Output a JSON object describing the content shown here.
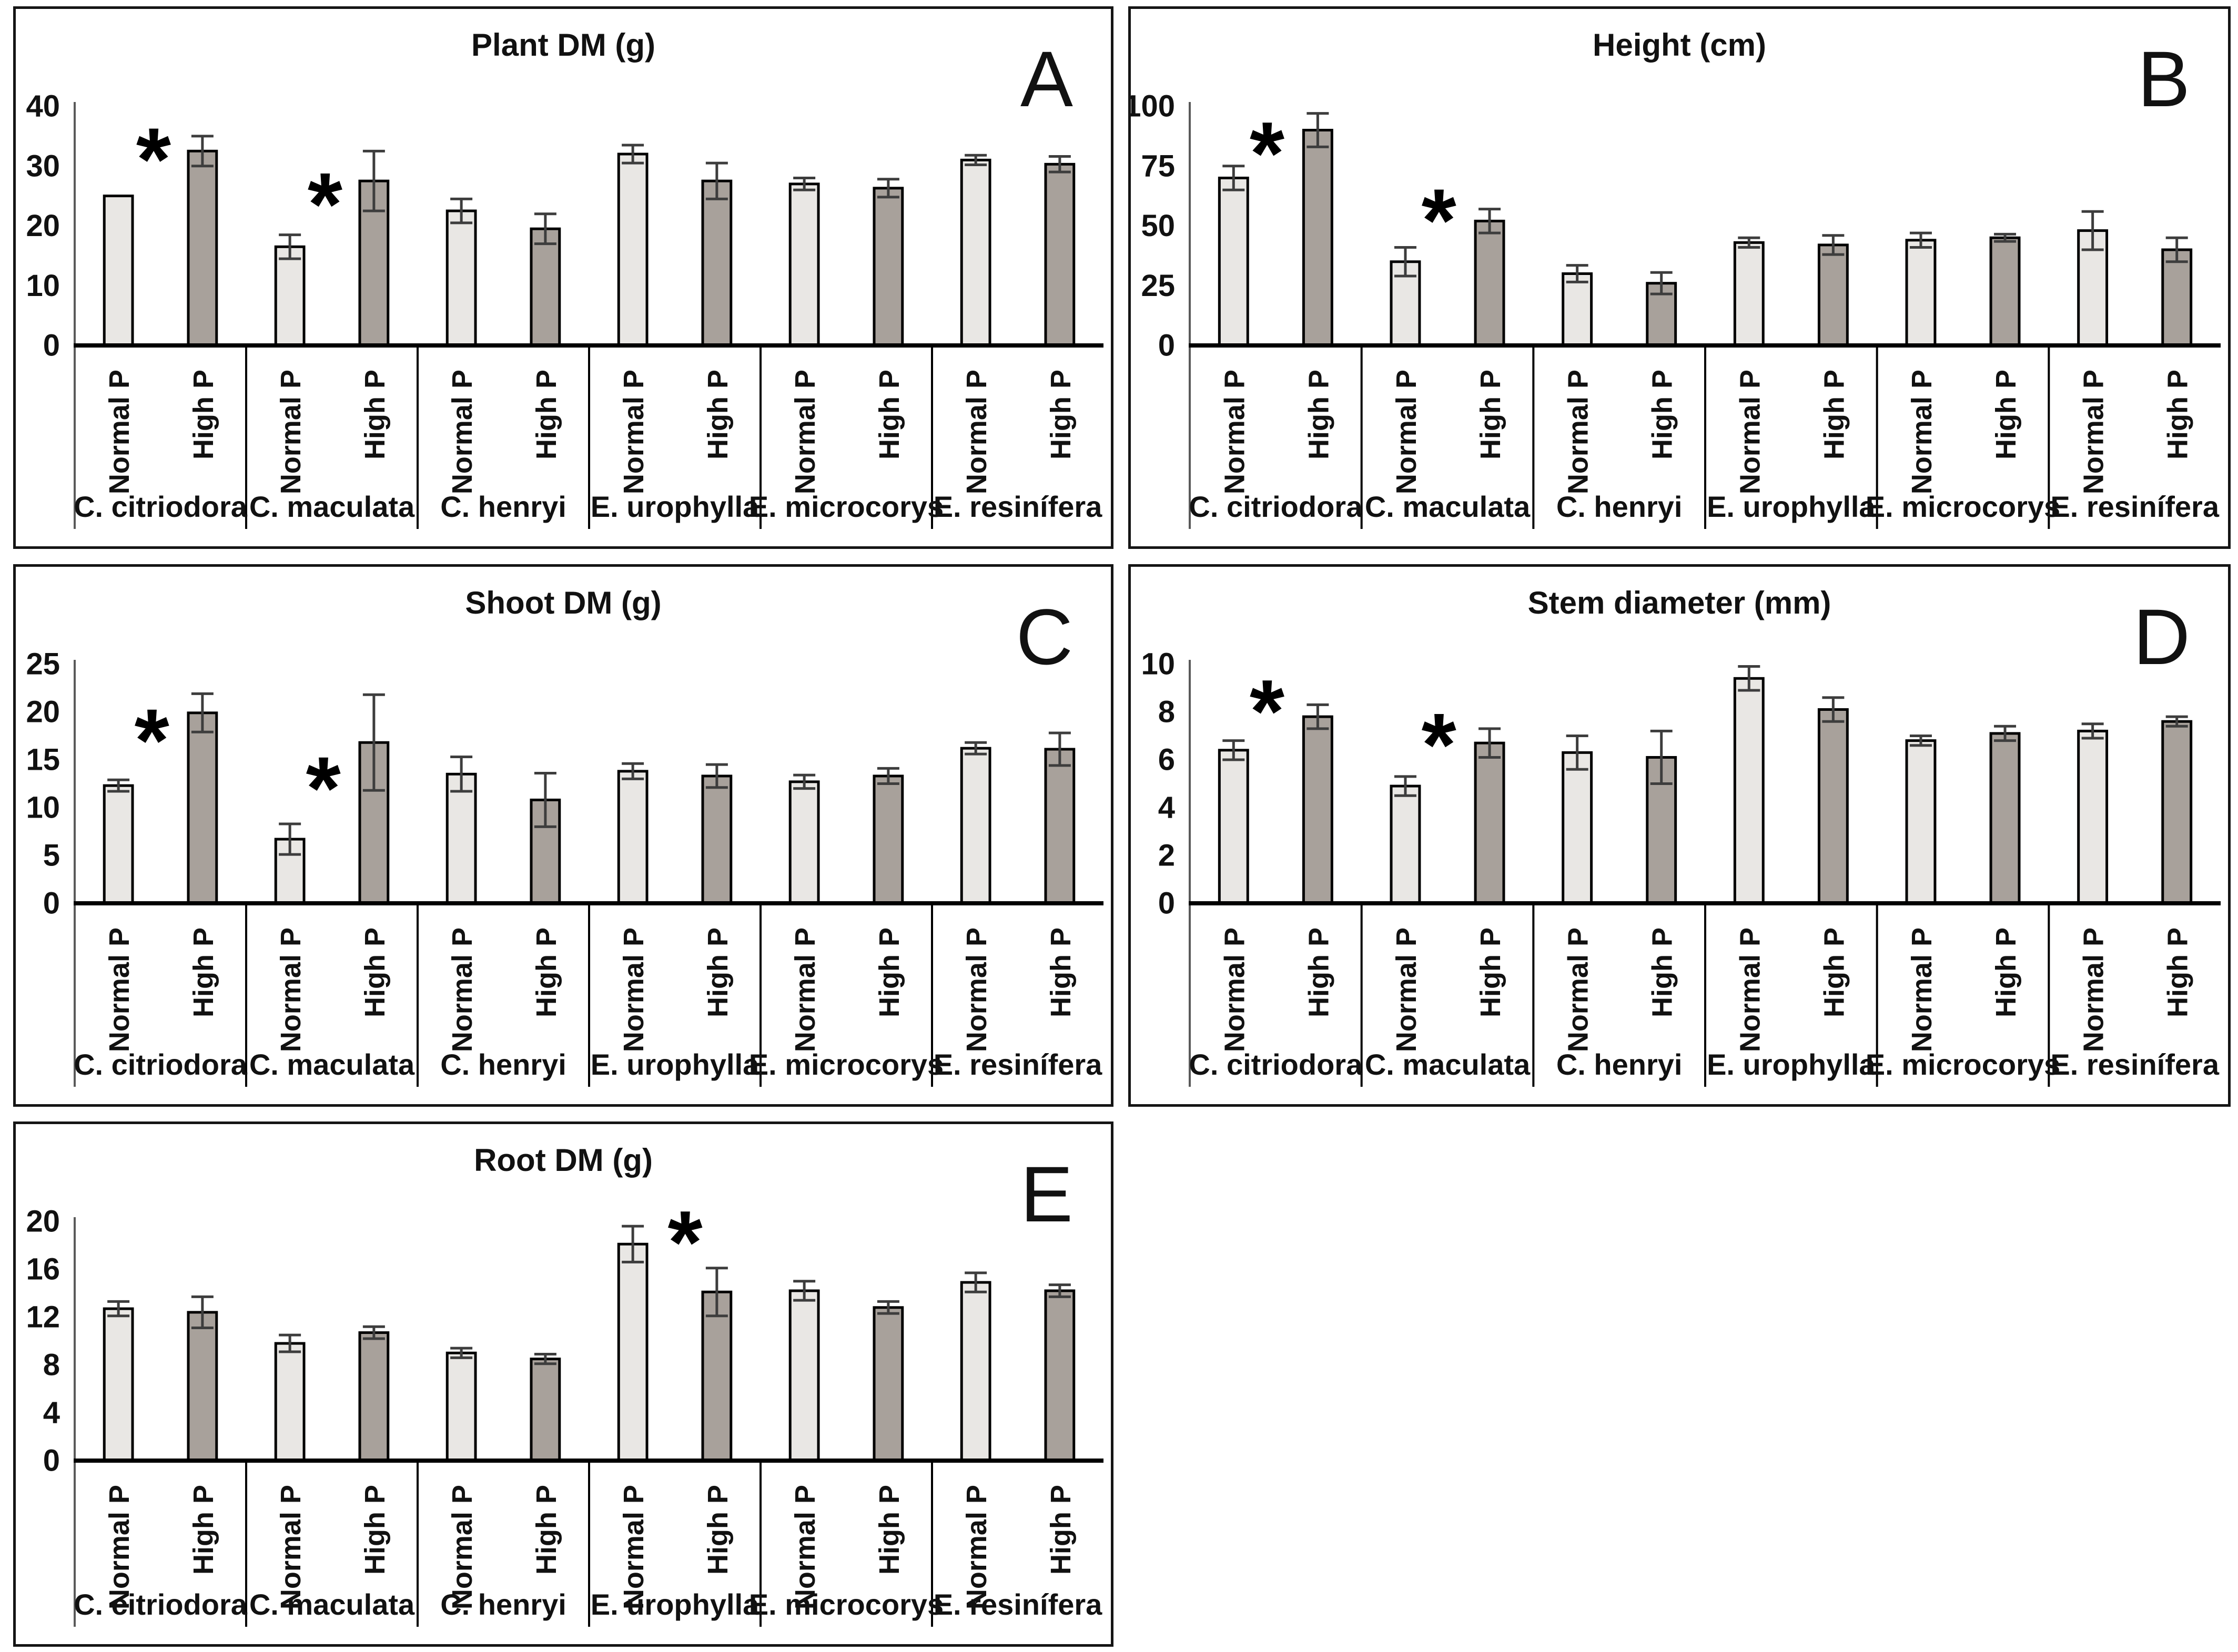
{
  "style": {
    "normal_fill": "#e9e7e4",
    "high_fill": "#a8a19b",
    "bar_stroke": "#000000",
    "error_color": "#3d3d3d",
    "axis_color": "#5a5a5a",
    "separator_color": "#000000",
    "text_color": "#111111",
    "panel_border_color": "#151515"
  },
  "treatments": [
    "Normal P",
    "High P"
  ],
  "species": [
    "C. citriodora",
    "C. maculata",
    "C. henryi",
    "E. urophylla",
    "E. microcorys",
    "E. resinífera"
  ],
  "chart_data": [
    {
      "panel": "A",
      "type": "bar",
      "title": "Plant DM (g)",
      "ylim": [
        0,
        40
      ],
      "yticks": [
        0,
        10,
        20,
        30,
        40
      ],
      "grid": false,
      "legend": "none",
      "categories": [
        "C. citriodora",
        "C. maculata",
        "C. henryi",
        "E. urophylla",
        "E. microcorys",
        "E. resinífera"
      ],
      "series": [
        {
          "name": "Normal P",
          "values": [
            25,
            16.5,
            22.5,
            32,
            27,
            31
          ],
          "errors": [
            0,
            2,
            2,
            1.5,
            1,
            0.8
          ]
        },
        {
          "name": "High P",
          "values": [
            32.5,
            27.5,
            19.5,
            27.5,
            26.3,
            30.3
          ],
          "errors": [
            2.5,
            5,
            2.5,
            3,
            1.5,
            1.3
          ]
        }
      ],
      "asterisks": [
        {
          "group": 0,
          "x_frac": 0.46,
          "y_value": 33
        },
        {
          "group": 1,
          "x_frac": 0.46,
          "y_value": 25.5
        }
      ]
    },
    {
      "panel": "B",
      "type": "bar",
      "title": "Height (cm)",
      "ylim": [
        0,
        100
      ],
      "yticks": [
        0,
        25,
        50,
        75,
        100
      ],
      "grid": false,
      "legend": "none",
      "categories": [
        "C. citriodora",
        "C. maculata",
        "C. henryi",
        "E. urophylla",
        "E. microcorys",
        "E. resinífera"
      ],
      "series": [
        {
          "name": "Normal P",
          "values": [
            70,
            35,
            30,
            43,
            44,
            48
          ],
          "errors": [
            5,
            6,
            3.5,
            2,
            3,
            8
          ]
        },
        {
          "name": "High P",
          "values": [
            90,
            52,
            26,
            42,
            45,
            40
          ],
          "errors": [
            7,
            5,
            4.5,
            4,
            1.5,
            5
          ]
        }
      ],
      "asterisks": [
        {
          "group": 0,
          "x_frac": 0.45,
          "y_value": 85
        },
        {
          "group": 1,
          "x_frac": 0.45,
          "y_value": 57
        }
      ]
    },
    {
      "panel": "C",
      "type": "bar",
      "title": "Shoot DM (g)",
      "ylim": [
        0,
        25
      ],
      "yticks": [
        0,
        5,
        10,
        15,
        20,
        25
      ],
      "grid": false,
      "legend": "none",
      "categories": [
        "C. citriodora",
        "C. maculata",
        "C. henryi",
        "E. urophylla",
        "E. microcorys",
        "E. resinífera"
      ],
      "series": [
        {
          "name": "Normal P",
          "values": [
            12.3,
            6.7,
            13.5,
            13.8,
            12.7,
            16.2
          ],
          "errors": [
            0.6,
            1.6,
            1.8,
            0.8,
            0.7,
            0.6
          ]
        },
        {
          "name": "High P",
          "values": [
            19.9,
            16.8,
            10.8,
            13.3,
            13.3,
            16.1
          ],
          "errors": [
            2,
            5,
            2.8,
            1.2,
            0.8,
            1.7
          ]
        }
      ],
      "asterisks": [
        {
          "group": 0,
          "x_frac": 0.45,
          "y_value": 18.2
        },
        {
          "group": 1,
          "x_frac": 0.45,
          "y_value": 13.2
        }
      ]
    },
    {
      "panel": "D",
      "type": "bar",
      "title": "Stem diameter (mm)",
      "ylim": [
        0,
        10
      ],
      "yticks": [
        0,
        2,
        4,
        6,
        8,
        10
      ],
      "grid": false,
      "legend": "none",
      "categories": [
        "C. citriodora",
        "C. maculata",
        "C. henryi",
        "E. urophylla",
        "E. microcorys",
        "E. resinífera"
      ],
      "series": [
        {
          "name": "Normal P",
          "values": [
            6.4,
            4.9,
            6.3,
            9.4,
            6.8,
            7.2
          ],
          "errors": [
            0.4,
            0.4,
            0.7,
            0.5,
            0.2,
            0.3
          ]
        },
        {
          "name": "High P",
          "values": [
            7.8,
            6.7,
            6.1,
            8.1,
            7.1,
            7.6
          ],
          "errors": [
            0.5,
            0.6,
            1.1,
            0.5,
            0.3,
            0.2
          ]
        }
      ],
      "asterisks": [
        {
          "group": 0,
          "x_frac": 0.45,
          "y_value": 8.5
        },
        {
          "group": 1,
          "x_frac": 0.45,
          "y_value": 7.1
        }
      ]
    },
    {
      "panel": "E",
      "type": "bar",
      "title": "Root DM (g)",
      "ylim": [
        0,
        20
      ],
      "yticks": [
        0,
        4,
        8,
        12,
        16,
        20
      ],
      "grid": false,
      "legend": "none",
      "categories": [
        "C. citriodora",
        "C. maculata",
        "C. henryi",
        "E. urophylla",
        "E. microcorys",
        "E. resinífera"
      ],
      "series": [
        {
          "name": "Normal P",
          "values": [
            12.7,
            9.8,
            9.0,
            18.1,
            14.2,
            14.9
          ],
          "errors": [
            0.6,
            0.7,
            0.4,
            1.5,
            0.8,
            0.8
          ]
        },
        {
          "name": "High P",
          "values": [
            12.4,
            10.7,
            8.5,
            14.1,
            12.8,
            14.2
          ],
          "errors": [
            1.3,
            0.5,
            0.4,
            2.0,
            0.5,
            0.5
          ]
        }
      ],
      "asterisks": [
        {
          "group": 3,
          "x_frac": 0.56,
          "y_value": 19.2
        }
      ]
    }
  ]
}
